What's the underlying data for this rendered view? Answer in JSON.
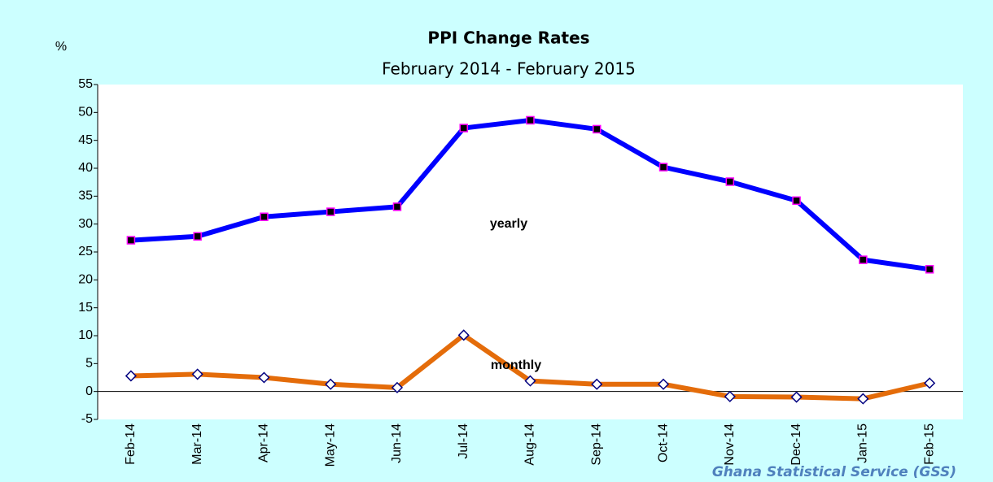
{
  "chart_data": {
    "type": "line",
    "title": "PPI Change Rates",
    "subtitle": "February  2014 - February 2015",
    "y_label": "%",
    "source": "Ghana Statistical Service (GSS)",
    "categories": [
      "Feb-14",
      "Mar-14",
      "Apr-14",
      "May-14",
      "Jun-14",
      "Jul-14",
      "Aug-14",
      "Sep-14",
      "Oct-14",
      "Nov-14",
      "Dec-14",
      "Jan-15",
      "Feb-15"
    ],
    "series": [
      {
        "name": "yearly",
        "color": "#0000ff",
        "values": [
          27.1,
          27.8,
          31.3,
          32.2,
          33.1,
          47.2,
          48.6,
          47.0,
          40.2,
          37.6,
          34.2,
          23.6,
          21.9
        ]
      },
      {
        "name": "monthly",
        "color": "#e46c0a",
        "values": [
          2.8,
          3.1,
          2.5,
          1.3,
          0.7,
          10.1,
          1.9,
          1.3,
          1.3,
          -0.9,
          -1.0,
          -1.3,
          1.5
        ]
      }
    ],
    "ylim": [
      -5,
      55
    ],
    "yticks": [
      -5,
      0,
      5,
      10,
      15,
      20,
      25,
      30,
      35,
      40,
      45,
      50,
      55
    ],
    "grid": false
  }
}
